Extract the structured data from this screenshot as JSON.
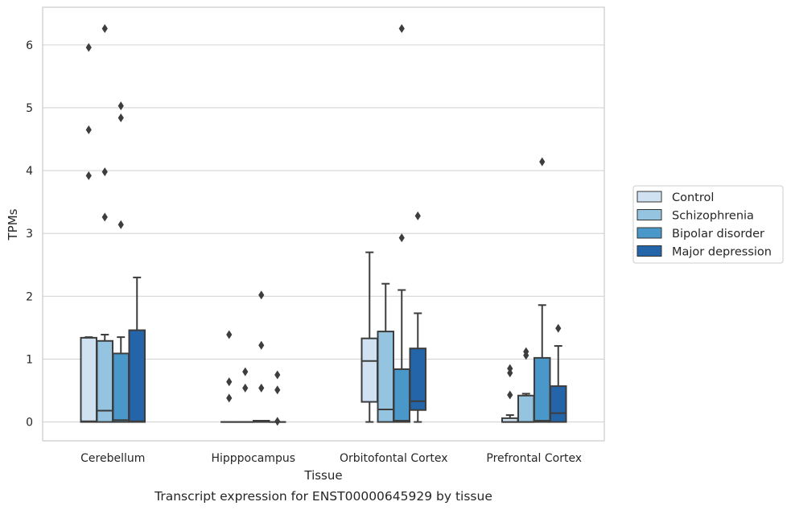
{
  "chart_data": {
    "type": "box",
    "caption": "Transcript expression for ENST00000645929 by tissue",
    "xlabel": "Tissue",
    "ylabel": "TPMs",
    "ylim": [
      -0.3,
      6.6
    ],
    "yticks": [
      0,
      1,
      2,
      3,
      4,
      5,
      6
    ],
    "grid": "horizontal",
    "legend_position": "right",
    "categories": [
      "Cerebellum",
      "Hipppocampus",
      "Orbitofontal Cortex",
      "Prefrontal Cortex"
    ],
    "series": [
      {
        "name": "Control",
        "color": "#d0e1f2",
        "boxes": [
          {
            "whislo": 0,
            "q1": 0.0,
            "med": 0.01,
            "q3": 1.34,
            "whishi": 1.35,
            "fliers": [
              3.92,
              4.65,
              5.96
            ]
          },
          {
            "whislo": 0,
            "q1": 0,
            "med": 0,
            "q3": 0,
            "whishi": 0,
            "fliers": [
              0.38,
              0.64,
              1.39
            ]
          },
          {
            "whislo": 0,
            "q1": 0.32,
            "med": 0.97,
            "q3": 1.33,
            "whishi": 2.7,
            "fliers": []
          },
          {
            "whislo": 0,
            "q1": 0,
            "med": 0.0,
            "q3": 0.06,
            "whishi": 0.11,
            "fliers": [
              0.43,
              0.78,
              0.85
            ]
          }
        ]
      },
      {
        "name": "Schizophrenia",
        "color": "#94c4df",
        "boxes": [
          {
            "whislo": 0,
            "q1": 0.0,
            "med": 0.18,
            "q3": 1.29,
            "whishi": 1.39,
            "fliers": [
              3.26,
              3.98,
              6.26
            ]
          },
          {
            "whislo": 0,
            "q1": 0,
            "med": 0,
            "q3": 0,
            "whishi": 0,
            "fliers": [
              0.54,
              0.8
            ]
          },
          {
            "whislo": 0,
            "q1": 0.0,
            "med": 0.2,
            "q3": 1.44,
            "whishi": 2.2,
            "fliers": []
          },
          {
            "whislo": 0,
            "q1": 0,
            "med": 0.0,
            "q3": 0.42,
            "whishi": 0.45,
            "fliers": [
              1.06,
              1.12
            ]
          }
        ]
      },
      {
        "name": "Bipolar disorder",
        "color": "#4a98c9",
        "boxes": [
          {
            "whislo": 0,
            "q1": 0.0,
            "med": 0.03,
            "q3": 1.09,
            "whishi": 1.35,
            "fliers": [
              3.14,
              4.84,
              5.03
            ]
          },
          {
            "whislo": 0,
            "q1": 0,
            "med": 0.01,
            "q3": 0.02,
            "whishi": 0.02,
            "fliers": [
              0.54,
              1.22,
              2.02
            ]
          },
          {
            "whislo": 0,
            "q1": 0.0,
            "med": 0.02,
            "q3": 0.84,
            "whishi": 2.1,
            "fliers": [
              2.93,
              6.26
            ]
          },
          {
            "whislo": 0,
            "q1": 0,
            "med": 0.02,
            "q3": 1.02,
            "whishi": 1.86,
            "fliers": [
              4.14
            ]
          }
        ]
      },
      {
        "name": "Major depression",
        "color": "#2464a9",
        "boxes": [
          {
            "whislo": 0,
            "q1": 0.0,
            "med": 0.01,
            "q3": 1.46,
            "whishi": 2.3,
            "fliers": []
          },
          {
            "whislo": 0,
            "q1": 0,
            "med": 0,
            "q3": 0,
            "whishi": 0,
            "fliers": [
              0.01,
              0.51,
              0.75
            ]
          },
          {
            "whislo": 0,
            "q1": 0.19,
            "med": 0.33,
            "q3": 1.17,
            "whishi": 1.73,
            "fliers": [
              3.28
            ]
          },
          {
            "whislo": 0,
            "q1": 0,
            "med": 0.14,
            "q3": 0.57,
            "whishi": 1.21,
            "fliers": [
              1.49
            ]
          }
        ]
      }
    ]
  }
}
